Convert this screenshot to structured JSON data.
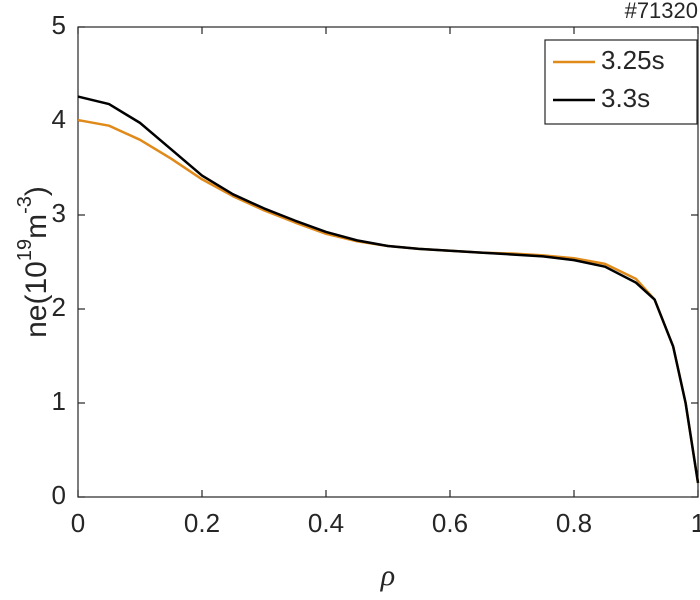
{
  "chart_data": {
    "type": "line",
    "title": "#71320",
    "xlabel": "ρ",
    "ylabel_parts": [
      "ne(10",
      "19",
      "m",
      "-3",
      ")"
    ],
    "x": [
      0,
      0.05,
      0.1,
      0.15,
      0.2,
      0.25,
      0.3,
      0.35,
      0.4,
      0.45,
      0.5,
      0.55,
      0.6,
      0.65,
      0.7,
      0.75,
      0.8,
      0.85,
      0.9,
      0.93,
      0.96,
      0.98,
      1.0
    ],
    "series": [
      {
        "name": "3.25s",
        "color": "#e08a1a",
        "values": [
          4.01,
          3.95,
          3.8,
          3.6,
          3.38,
          3.2,
          3.05,
          2.92,
          2.8,
          2.72,
          2.67,
          2.64,
          2.62,
          2.6,
          2.59,
          2.57,
          2.54,
          2.48,
          2.32,
          2.1,
          1.6,
          1.0,
          0.15
        ]
      },
      {
        "name": "3.3s",
        "color": "#000000",
        "values": [
          4.26,
          4.18,
          3.98,
          3.7,
          3.42,
          3.22,
          3.07,
          2.94,
          2.82,
          2.73,
          2.67,
          2.64,
          2.62,
          2.6,
          2.58,
          2.56,
          2.52,
          2.45,
          2.28,
          2.1,
          1.6,
          1.0,
          0.15
        ]
      }
    ],
    "xlim": [
      0,
      1
    ],
    "xticks": [
      0,
      0.2,
      0.4,
      0.6,
      0.8,
      1
    ],
    "ylim": [
      0,
      5
    ],
    "yticks": [
      0,
      1,
      2,
      3,
      4,
      5
    ],
    "legend": "upper right"
  }
}
